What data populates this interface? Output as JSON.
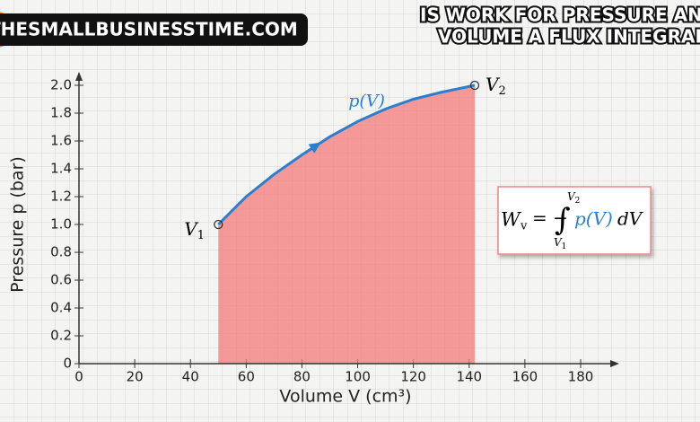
{
  "banner": "THESMALLBUSINESSTIME.COM",
  "headline": [
    "IS WORK FOR PRESSURE AND",
    "VOLUME A FLUX INTEGRAL"
  ],
  "chart_data": {
    "type": "area",
    "xlabel": "Volume V (cm³)",
    "ylabel": "Pressure p (bar)",
    "x": [
      50,
      60,
      70,
      80,
      90,
      100,
      110,
      120,
      130,
      142
    ],
    "values": [
      1.0,
      1.2,
      1.36,
      1.5,
      1.63,
      1.74,
      1.83,
      1.9,
      1.95,
      2.0
    ],
    "line_color": "#2a7fd0",
    "fill_color": "#f47a7a",
    "xlim": [
      0,
      180
    ],
    "xticks": [
      0,
      20,
      40,
      60,
      80,
      100,
      120,
      140,
      160,
      180
    ],
    "ylim": [
      0,
      2.0
    ],
    "yticks": [
      0,
      0.2,
      0.4,
      0.6,
      0.8,
      {
        "value": 1.0,
        "label": "1.0"
      },
      1.2,
      1.4,
      1.6,
      1.8,
      {
        "value": 2.0,
        "label": "2.0"
      }
    ],
    "annotations": {
      "start": [
        "V",
        "1"
      ],
      "end": [
        "V",
        "2"
      ],
      "curve": "p(V)"
    },
    "formula": {
      "lhs": "W",
      "lhs_sub": "v",
      "eq": "= −",
      "integral": "∫",
      "upper": [
        "V",
        "2"
      ],
      "lower": [
        "V",
        "1"
      ],
      "integrand": "p(V)",
      "d": "dV"
    }
  }
}
